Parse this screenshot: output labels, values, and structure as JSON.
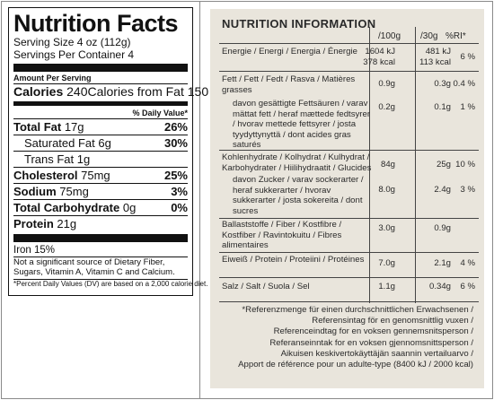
{
  "us_label": {
    "title": "Nutrition Facts",
    "serving_size": "Serving Size 4 oz (112g)",
    "servings_per_container": "Servings Per Container 4",
    "amount_per_serving": "Amount Per Serving",
    "calories_label": "Calories",
    "calories_value": "240",
    "calories_fat": "Calories from Fat 150",
    "daily_value_header": "% Daily Value*",
    "nutrients": [
      {
        "label": "Total Fat",
        "amount": "17g",
        "pct": "26%"
      },
      {
        "label": "Saturated Fat",
        "amount": "6g",
        "pct": "30%"
      },
      {
        "label": "Trans Fat",
        "amount": "1g",
        "pct": ""
      },
      {
        "label": "Cholesterol",
        "amount": "75mg",
        "pct": "25%"
      },
      {
        "label": "Sodium",
        "amount": "75mg",
        "pct": "3%"
      },
      {
        "label": "Total Carbohydrate",
        "amount": "0g",
        "pct": "0%"
      },
      {
        "label": "Protein",
        "amount": "21g",
        "pct": ""
      }
    ],
    "iron": "Iron 15%",
    "note": "Not a significant source of Dietary Fiber, Sugars, Vitamin A, Vitamin C and Calcium.",
    "footnote": "*Percent Daily Values (DV) are based on a 2,000 calorie diet."
  },
  "eu_label": {
    "title": "NUTRITION INFORMATION",
    "col_100g": "/100g",
    "col_30g": "/30g",
    "col_ri": "%RI*",
    "rows": [
      {
        "label": "Energie / Energi / Energia / Énergie",
        "v100": "1604 kJ",
        "v100b": "378 kcal",
        "v30": "481 kJ",
        "v30b": "113 kcal",
        "ri": "6 %"
      },
      {
        "label": "Fett / Fett / Fedt / Rasva / Matières grasses",
        "v100": "0.9g",
        "v30": "0.3g",
        "ri": "0.4 %"
      },
      {
        "label": "davon gesättigte Fettsäuren / varav mättat fett / heraf mættede fedtsyrer / hvorav mettede fettsyrer / josta tyydyttynyttä / dont acides gras saturés",
        "v100": "0.2g",
        "v30": "0.1g",
        "ri": "1 %"
      },
      {
        "label": "Kohlenhydrate / Kolhydrat / Kulhydrat / Karbohydrater / Hiilihydraatit / Glucides",
        "v100": "84g",
        "v30": "25g",
        "ri": "10 %"
      },
      {
        "label": "davon Zucker / varav sockerarter / heraf sukkerarter / hvorav sukkerarter / josta sokereita / dont sucres",
        "v100": "8.0g",
        "v30": "2.4g",
        "ri": "3 %"
      },
      {
        "label": "Ballaststoffe / Fiber / Kostfibre / Kostfiber / Ravintokuitu / Fibres alimentaires",
        "v100": "3.0g",
        "v30": "0.9g",
        "ri": ""
      },
      {
        "label": "Eiweiß / Protein / Proteiini / Protéines",
        "v100": "7.0g",
        "v30": "2.1g",
        "ri": "4 %"
      },
      {
        "label": "Salz / Salt / Suola / Sel",
        "v100": "1.1g",
        "v30": "0.34g",
        "ri": "6 %"
      }
    ],
    "footnote": [
      "*Referenzmenge für einen durchschnittlichen Erwachsenen /",
      "Referensintag för en genomsnittlig vuxen /",
      "Referenceindtag for en voksen gennemsnitsperson /",
      "Referanseinntak for en voksen gjennomsnittsperson /",
      "Aikuisen keskivertokäyttäjän saannin vertailuarvo /",
      "Apport de référence pour un adulte-type (8400 kJ / 2000 kcal)"
    ]
  }
}
